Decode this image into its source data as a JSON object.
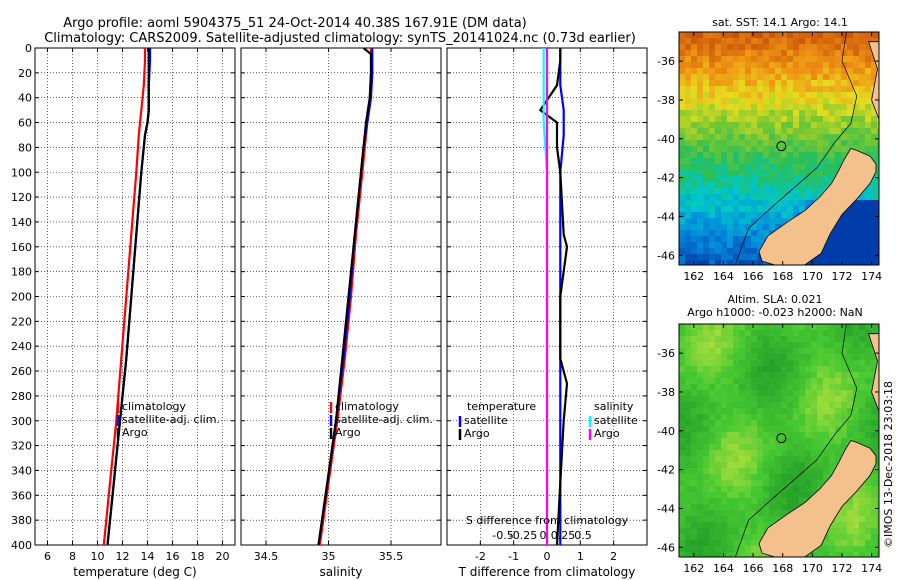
{
  "title_line1": "Argo profile: aoml 5904375_51 24-Oct-2014 40.38S 167.91E (DM data)",
  "title_line2": "Climatology: CARS2009. Satellite-adjusted climatology: synTS_20141024.nc (0.73d earlier)",
  "map_top_title": "sat. SST: 14.1 Argo: 14.1",
  "map_bottom_title1": "Altim. SLA: 0.021",
  "map_bottom_title2": "Argo h1000: -0.023 h2000: NaN",
  "watermark": "©IMOS 13-Dec-2018 23:03:18",
  "colors": {
    "climatology": "#ff0000",
    "satellite": "#0000ff",
    "argo": "#000000",
    "sal_satellite": "#00ffff",
    "sal_argo": "#ff00ff"
  },
  "chart_data": [
    {
      "type": "line",
      "xlabel": "temperature (deg C)",
      "ylabel": "",
      "xlim": [
        5,
        21
      ],
      "ylim": [
        400,
        0
      ],
      "xticks": [
        6,
        8,
        10,
        12,
        14,
        16,
        18,
        20
      ],
      "yticks": [
        0,
        20,
        40,
        60,
        80,
        100,
        120,
        140,
        160,
        180,
        200,
        220,
        240,
        260,
        280,
        300,
        320,
        340,
        360,
        380,
        400
      ],
      "grid": true,
      "legend": [
        "climatology",
        "satellite-adj. clim.",
        "Argo"
      ],
      "legend_position": "right-middle",
      "series": [
        {
          "name": "climatology",
          "color": "#ff0000",
          "depth": [
            0,
            10,
            30,
            50,
            70,
            100,
            150,
            200,
            250,
            300,
            350,
            400
          ],
          "values": [
            13.8,
            13.8,
            13.7,
            13.5,
            13.3,
            13.1,
            12.7,
            12.3,
            11.9,
            11.5,
            11.0,
            10.5
          ]
        },
        {
          "name": "satellite-adj. clim.",
          "color": "#0000ff",
          "depth": [
            0,
            10,
            30,
            50,
            60,
            70,
            100,
            150,
            200,
            250,
            300,
            350,
            400
          ],
          "values": [
            14.2,
            14.2,
            14.1,
            14.1,
            14.0,
            13.8,
            13.5,
            13.1,
            12.7,
            12.3,
            11.8,
            11.3,
            10.8
          ]
        },
        {
          "name": "Argo",
          "color": "#000000",
          "depth": [
            0,
            10,
            30,
            50,
            60,
            70,
            100,
            150,
            200,
            250,
            300,
            350,
            400
          ],
          "values": [
            14.1,
            14.1,
            14.1,
            14.1,
            14.0,
            13.8,
            13.5,
            13.1,
            12.7,
            12.3,
            11.8,
            11.3,
            10.8
          ]
        }
      ]
    },
    {
      "type": "line",
      "xlabel": "salinity",
      "ylabel": "",
      "xlim": [
        34.3,
        35.9
      ],
      "ylim": [
        400,
        0
      ],
      "xticks": [
        34.5,
        35,
        35.5
      ],
      "tick_labels": [
        "34.5",
        "35",
        "35.5"
      ],
      "grid": true,
      "legend": [
        "climatology",
        "satellite-adj. clim.",
        "Argo"
      ],
      "legend_position": "right-middle",
      "series": [
        {
          "name": "climatology",
          "color": "#ff0000",
          "depth": [
            0,
            20,
            40,
            60,
            80,
            100,
            150,
            200,
            250,
            300,
            350,
            400
          ],
          "values": [
            35.34,
            35.34,
            35.33,
            35.31,
            35.29,
            35.27,
            35.22,
            35.18,
            35.13,
            35.07,
            35.0,
            34.93
          ]
        },
        {
          "name": "satellite-adj. clim.",
          "color": "#0000ff",
          "depth": [
            0,
            20,
            40,
            60,
            80,
            100,
            150,
            200,
            250,
            300,
            350,
            400
          ],
          "values": [
            35.35,
            35.35,
            35.34,
            35.31,
            35.28,
            35.26,
            35.21,
            35.17,
            35.12,
            35.06,
            34.99,
            34.92
          ]
        },
        {
          "name": "Argo",
          "color": "#000000",
          "depth": [
            0,
            5,
            20,
            40,
            60,
            80,
            100,
            150,
            200,
            250,
            300,
            350,
            400
          ],
          "values": [
            35.28,
            35.34,
            35.34,
            35.33,
            35.3,
            35.28,
            35.26,
            35.21,
            35.16,
            35.11,
            35.06,
            34.99,
            34.92
          ]
        }
      ]
    },
    {
      "type": "line",
      "xlabel": "T difference from climatology",
      "xlabel_secondary": "S difference from climatology",
      "xlim": [
        -3,
        3
      ],
      "ylim": [
        400,
        0
      ],
      "xticks": [
        -2,
        -1,
        0,
        1,
        2
      ],
      "s_xticks": [
        -0.5,
        -0.25,
        0,
        0.25,
        0.5
      ],
      "s_tick_labels": [
        "-0.5",
        "-0.25",
        "0",
        "0.25",
        "0.5"
      ],
      "grid": true,
      "legend_temperature_title": "temperature",
      "legend_temperature": [
        "satellite",
        "Argo"
      ],
      "legend_salinity_title": "salinity",
      "legend_salinity": [
        "satellite",
        "Argo"
      ],
      "series": [
        {
          "name": "temperature satellite",
          "color": "#0000ff",
          "depth": [
            0,
            10,
            30,
            50,
            70,
            100,
            150,
            200,
            250,
            300,
            350,
            400
          ],
          "values": [
            0.4,
            0.4,
            0.4,
            0.5,
            0.5,
            0.4,
            0.4,
            0.4,
            0.4,
            0.4,
            0.4,
            0.4
          ]
        },
        {
          "name": "temperature Argo",
          "color": "#000000",
          "depth": [
            0,
            10,
            30,
            50,
            60,
            80,
            100,
            150,
            160,
            200,
            250,
            270,
            300,
            350,
            400
          ],
          "values": [
            0.4,
            0.4,
            0.3,
            -0.2,
            0.3,
            0.3,
            0.4,
            0.5,
            0.6,
            0.4,
            0.4,
            0.6,
            0.5,
            0.4,
            0.3
          ]
        },
        {
          "name": "salinity satellite",
          "color": "#00ffff",
          "depth": [
            0,
            10,
            30,
            60,
            100,
            150,
            200,
            250,
            300,
            350,
            400
          ],
          "values": [
            -0.1,
            -0.1,
            -0.1,
            -0.1,
            0.0,
            0.0,
            0.0,
            0.0,
            0.0,
            0.0,
            0.0
          ]
        },
        {
          "name": "salinity Argo",
          "color": "#ff00ff",
          "depth": [
            0,
            10,
            30,
            60,
            100,
            150,
            200,
            250,
            300,
            350,
            400
          ],
          "values": [
            0.0,
            0.0,
            0.0,
            0.0,
            0.0,
            0.0,
            0.0,
            0.0,
            0.0,
            0.0,
            0.0
          ]
        }
      ]
    },
    {
      "type": "heatmap",
      "title": "sat. SST: 14.1 Argo: 14.1",
      "xlim": [
        161,
        174.5
      ],
      "ylim": [
        -46.5,
        -34.5
      ],
      "xticks": [
        162,
        164,
        166,
        168,
        170,
        172,
        174
      ],
      "yticks": [
        -36,
        -38,
        -40,
        -42,
        -44,
        -46
      ],
      "marker": {
        "lon": 167.91,
        "lat": -40.38
      }
    },
    {
      "type": "heatmap",
      "title": "Altim. SLA: 0.021",
      "subtitle": "Argo h1000: -0.023 h2000: NaN",
      "xlim": [
        161,
        174.5
      ],
      "ylim": [
        -46.5,
        -34.5
      ],
      "xticks": [
        162,
        164,
        166,
        168,
        170,
        172,
        174
      ],
      "yticks": [
        -36,
        -38,
        -40,
        -42,
        -44,
        -46
      ],
      "marker": {
        "lon": 167.91,
        "lat": -40.38
      }
    }
  ]
}
